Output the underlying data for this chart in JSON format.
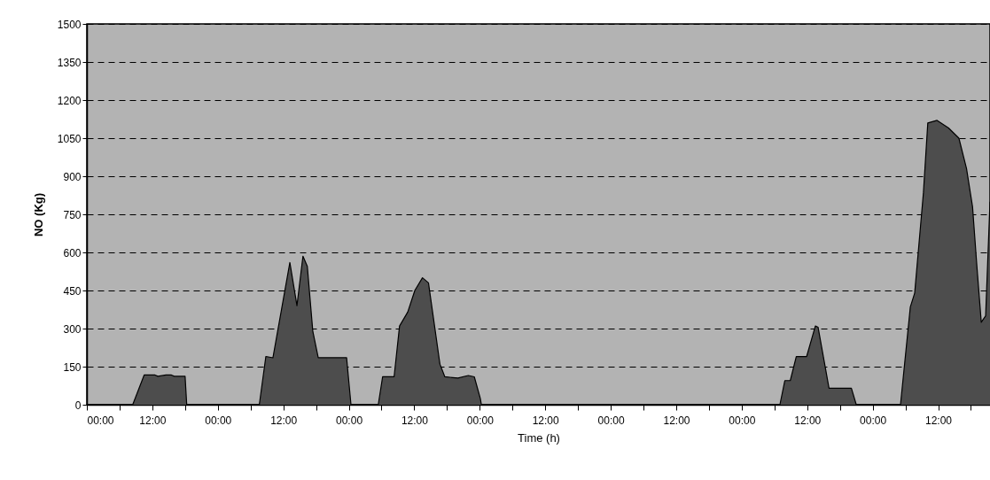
{
  "chart_data": {
    "type": "area",
    "xlabel": "Time (h)",
    "ylabel": "NO (Kg)",
    "x": [
      "--01-01T00:00",
      "--01-01T08:24",
      "--01-01T10:30",
      "--01-01T12:30",
      "--01-01T13:00",
      "--01-01T14:30",
      "--01-01T15:30",
      "--01-01T16:00",
      "--01-01T18:00",
      "--01-01T18:18",
      "--01-02T07:36",
      "--01-02T08:48",
      "--01-02T10:06",
      "--01-02T13:12",
      "--01-02T14:30",
      "--01-02T15:36",
      "--01-02T16:24",
      "--01-02T17:24",
      "--01-02T18:24",
      "--01-02T23:36",
      "--01-03T00:24",
      "--01-03T05:24",
      "--01-03T06:12",
      "--01-03T08:18",
      "--01-03T09:18",
      "--01-03T10:48",
      "--01-03T12:06",
      "--01-03T13:30",
      "--01-03T14:36",
      "--01-03T16:42",
      "--01-03T17:36",
      "--01-03T20:00",
      "--01-03T21:54",
      "--01-03T23:00",
      "--01-04T00:06",
      "--01-04T00:18",
      "--01-06T07:00",
      "--01-06T07:54",
      "--01-06T08:54",
      "--01-06T10:00",
      "--01-06T11:54",
      "--01-06T13:30",
      "--01-06T14:00",
      "--01-06T16:00",
      "--01-06T20:06",
      "--01-06T21:00",
      "--01-07T05:06",
      "--01-07T06:54",
      "--01-07T07:42",
      "--01-07T09:18",
      "--01-07T10:06",
      "--01-07T11:48",
      "--01-07T13:54",
      "--01-07T15:48",
      "--01-07T17:12",
      "--01-07T18:18",
      "--01-07T19:06",
      "--01-07T19:54",
      "--01-07T20:42",
      "--01-07T21:30"
    ],
    "series": [
      {
        "color": "#4d4d4d",
        "values": [
          0,
          0,
          117,
          117,
          112,
          117,
          117,
          112,
          112,
          0,
          0,
          190,
          185,
          560,
          390,
          585,
          545,
          290,
          185,
          185,
          0,
          0,
          110,
          110,
          310,
          365,
          450,
          500,
          480,
          160,
          110,
          105,
          115,
          110,
          25,
          0,
          0,
          95,
          95,
          190,
          190,
          310,
          305,
          65,
          65,
          0,
          0,
          385,
          440,
          835,
          1110,
          1120,
          1090,
          1050,
          930,
          780,
          545,
          325,
          350,
          800
        ]
      }
    ],
    "xlim": [
      "--01-01T00:00",
      "--01-07T21:30"
    ],
    "ylim": [
      0,
      1500
    ],
    "xticks": [
      {
        "value": "--01-01T00:00",
        "label": "00:00"
      },
      {
        "value": "--01-01T06:00",
        "label": null
      },
      {
        "value": "--01-01T12:00",
        "label": "12:00"
      },
      {
        "value": "--01-01T18:00",
        "label": null
      },
      {
        "value": "--01-02T00:00",
        "label": "00:00"
      },
      {
        "value": "--01-02T06:00",
        "label": null
      },
      {
        "value": "--01-02T12:00",
        "label": "12:00"
      },
      {
        "value": "--01-02T18:00",
        "label": null
      },
      {
        "value": "--01-03T00:00",
        "label": "00:00"
      },
      {
        "value": "--01-03T06:00",
        "label": null
      },
      {
        "value": "--01-03T12:00",
        "label": "12:00"
      },
      {
        "value": "--01-03T18:00",
        "label": null
      },
      {
        "value": "--01-04T00:00",
        "label": "00:00"
      },
      {
        "value": "--01-04T06:00",
        "label": null
      },
      {
        "value": "--01-04T12:00",
        "label": "12:00"
      },
      {
        "value": "--01-04T18:00",
        "label": null
      },
      {
        "value": "--01-05T00:00",
        "label": "00:00"
      },
      {
        "value": "--01-05T06:00",
        "label": null
      },
      {
        "value": "--01-05T12:00",
        "label": "12:00"
      },
      {
        "value": "--01-05T18:00",
        "label": null
      },
      {
        "value": "--01-06T00:00",
        "label": "00:00"
      },
      {
        "value": "--01-06T06:00",
        "label": null
      },
      {
        "value": "--01-06T12:00",
        "label": "12:00"
      },
      {
        "value": "--01-06T18:00",
        "label": null
      },
      {
        "value": "--01-07T00:00",
        "label": "00:00"
      },
      {
        "value": "--01-07T06:00",
        "label": null
      },
      {
        "value": "--01-07T12:00",
        "label": "12:00"
      },
      {
        "value": "--01-07T18:00",
        "label": null
      }
    ],
    "yticks": [
      0,
      150,
      300,
      450,
      600,
      750,
      900,
      1050,
      1200,
      1350,
      1500
    ],
    "grid": "y",
    "legend": false
  }
}
